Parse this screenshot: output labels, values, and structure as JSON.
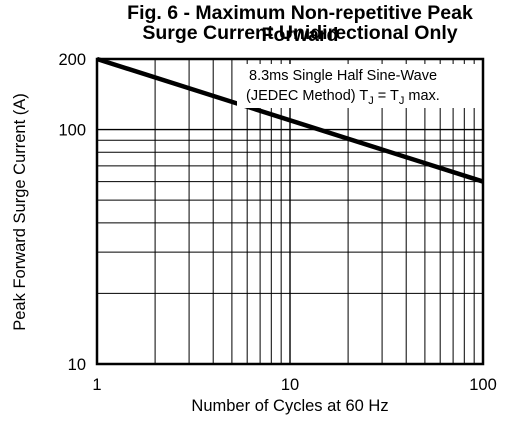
{
  "chart_data": {
    "type": "line",
    "title": "Fig. 6 - Maximum Non-repetitive Peak Forward",
    "subtitle": "Surge Current Unidirectional Only",
    "xlabel": "Number of Cycles at 60 Hz",
    "ylabel": "Peak Forward Surge Current (A)",
    "x_scale": "log",
    "y_scale": "log",
    "xlim": [
      1,
      100
    ],
    "ylim": [
      10,
      200
    ],
    "x_ticks": [
      "1",
      "10",
      "100"
    ],
    "y_ticks": [
      "10",
      "100",
      "200"
    ],
    "grid": true,
    "annotation_line1": "8.3ms Single Half Sine-Wave",
    "annotation_line2_prefix": "(JEDEC Method) T",
    "annotation_sub": "J",
    "annotation_eq": " = T",
    "annotation_sub2": "J",
    "annotation_suffix": " max.",
    "series": [
      {
        "x": [
          1,
          100
        ],
        "y": [
          200,
          60
        ]
      }
    ]
  }
}
